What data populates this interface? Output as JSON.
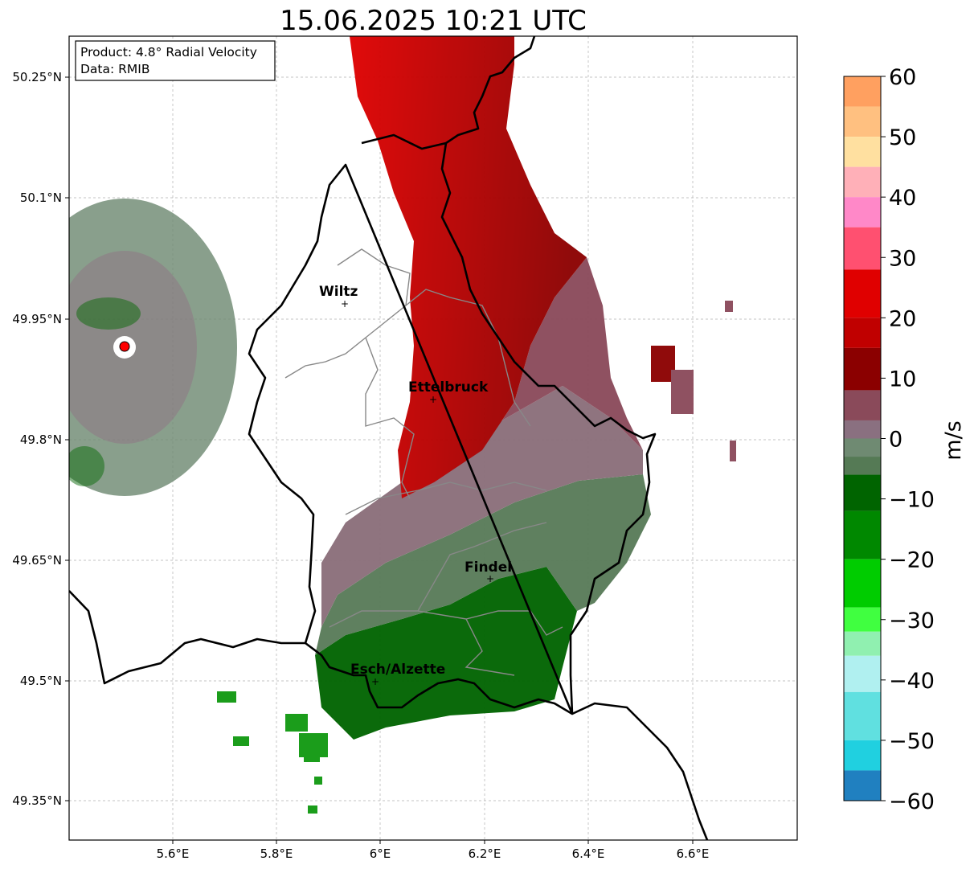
{
  "title": "15.06.2025 10:21 UTC",
  "info_box": {
    "product": "Product: 4.8° Radial Velocity",
    "source": "Data: RMIB"
  },
  "map": {
    "lon_range": [
      5.4,
      6.8
    ],
    "lat_range": [
      49.3,
      50.3
    ],
    "x_ticks": [
      "5.6°E",
      "5.8°E",
      "6°E",
      "6.2°E",
      "6.4°E",
      "6.6°E"
    ],
    "y_ticks": [
      "50.25°N",
      "50.1°N",
      "49.95°N",
      "49.8°N",
      "49.65°N",
      "49.5°N",
      "49.35°N"
    ],
    "grid": true,
    "cities": [
      {
        "name": "Wiltz"
      },
      {
        "name": "Ettelbruck"
      },
      {
        "name": "Findel"
      },
      {
        "name": "Esch/Alzette"
      }
    ],
    "radar_site_color": "#ff0000"
  },
  "colorbar": {
    "label": "m/s",
    "range": [
      -60,
      60
    ],
    "ticks": [
      "60",
      "50",
      "40",
      "30",
      "20",
      "10",
      "0",
      "−10",
      "−20",
      "−30",
      "−40",
      "−50",
      "−60"
    ],
    "colors": [
      {
        "from": 55,
        "to": 60,
        "color": "#ffa060"
      },
      {
        "from": 50,
        "to": 55,
        "color": "#ffc080"
      },
      {
        "from": 45,
        "to": 50,
        "color": "#ffe0a0"
      },
      {
        "from": 40,
        "to": 45,
        "color": "#ffb0b8"
      },
      {
        "from": 35,
        "to": 40,
        "color": "#ff88c8"
      },
      {
        "from": 28,
        "to": 35,
        "color": "#ff5070"
      },
      {
        "from": 20,
        "to": 28,
        "color": "#e00000"
      },
      {
        "from": 15,
        "to": 20,
        "color": "#c00000"
      },
      {
        "from": 8,
        "to": 15,
        "color": "#8b0000"
      },
      {
        "from": 3,
        "to": 8,
        "color": "#8a4a5a"
      },
      {
        "from": 0,
        "to": 3,
        "color": "#8a7080"
      },
      {
        "from": -3,
        "to": 0,
        "color": "#6f8a72"
      },
      {
        "from": -6,
        "to": -3,
        "color": "#557a55"
      },
      {
        "from": -12,
        "to": -6,
        "color": "#006400"
      },
      {
        "from": -20,
        "to": -12,
        "color": "#008800"
      },
      {
        "from": -28,
        "to": -20,
        "color": "#00cc00"
      },
      {
        "from": -32,
        "to": -28,
        "color": "#40ff40"
      },
      {
        "from": -36,
        "to": -32,
        "color": "#90f0b0"
      },
      {
        "from": -42,
        "to": -36,
        "color": "#b0f0f0"
      },
      {
        "from": -50,
        "to": -42,
        "color": "#60e0e0"
      },
      {
        "from": -55,
        "to": -50,
        "color": "#20d0e0"
      },
      {
        "from": -60,
        "to": -55,
        "color": "#2080c0"
      }
    ]
  }
}
